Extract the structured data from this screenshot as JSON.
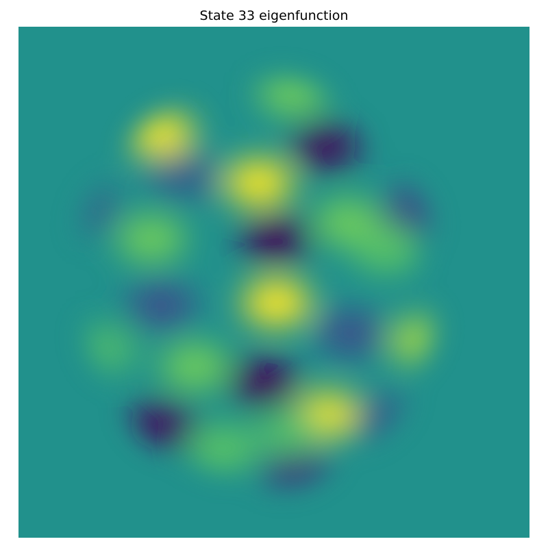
{
  "chart_data": {
    "type": "heatmap",
    "title": "State 33 eigenfunction",
    "xlabel": "",
    "ylabel": "",
    "axes_visible": false,
    "colormap": "viridis",
    "colormap_stops": [
      "#440154",
      "#3b528b",
      "#21918c",
      "#5ec962",
      "#fde725"
    ],
    "value_range": [
      -1,
      1
    ],
    "background_value": 0,
    "domain": "disk",
    "description_of_values": "Normalized eigenfunction amplitude; zero outside the disk",
    "lobes": [
      {
        "id": "lobe-1",
        "x": 0.278,
        "y": 0.79,
        "value": 0.95
      },
      {
        "id": "lobe-2",
        "x": 0.537,
        "y": 0.872,
        "value": 0.55
      },
      {
        "id": "lobe-3",
        "x": 0.6,
        "y": 0.765,
        "value": -0.95
      },
      {
        "id": "lobe-4",
        "x": 0.47,
        "y": 0.695,
        "value": 0.98
      },
      {
        "id": "lobe-5",
        "x": 0.322,
        "y": 0.709,
        "value": -0.4
      },
      {
        "id": "lobe-6",
        "x": 0.135,
        "y": 0.645,
        "value": -0.3
      },
      {
        "id": "lobe-7",
        "x": 0.26,
        "y": 0.585,
        "value": 0.55
      },
      {
        "id": "lobe-8",
        "x": 0.503,
        "y": 0.585,
        "value": -1.0
      },
      {
        "id": "lobe-9",
        "x": 0.645,
        "y": 0.617,
        "value": 0.55
      },
      {
        "id": "lobe-10",
        "x": 0.775,
        "y": 0.64,
        "value": -0.55
      },
      {
        "id": "lobe-11",
        "x": 0.28,
        "y": 0.455,
        "value": -0.5
      },
      {
        "id": "lobe-12",
        "x": 0.505,
        "y": 0.46,
        "value": 1.0
      },
      {
        "id": "lobe-13",
        "x": 0.65,
        "y": 0.4,
        "value": -0.5
      },
      {
        "id": "lobe-14",
        "x": 0.79,
        "y": 0.385,
        "value": 0.7
      },
      {
        "id": "lobe-15",
        "x": 0.17,
        "y": 0.37,
        "value": 0.35
      },
      {
        "id": "lobe-16",
        "x": 0.345,
        "y": 0.335,
        "value": 0.55
      },
      {
        "id": "lobe-17",
        "x": 0.48,
        "y": 0.305,
        "value": -0.98
      },
      {
        "id": "lobe-18",
        "x": 0.605,
        "y": 0.24,
        "value": 0.95
      },
      {
        "id": "lobe-19",
        "x": 0.28,
        "y": 0.22,
        "value": -0.9
      },
      {
        "id": "lobe-20",
        "x": 0.4,
        "y": 0.175,
        "value": 0.45
      },
      {
        "id": "lobe-21",
        "x": 0.72,
        "y": 0.23,
        "value": -0.4
      },
      {
        "id": "lobe-22",
        "x": 0.545,
        "y": 0.125,
        "value": -0.65
      },
      {
        "id": "lobe-23",
        "x": 0.72,
        "y": 0.565,
        "value": 0.45
      },
      {
        "id": "lobe-24",
        "x": 0.53,
        "y": 0.205,
        "value": 0.4
      }
    ]
  }
}
